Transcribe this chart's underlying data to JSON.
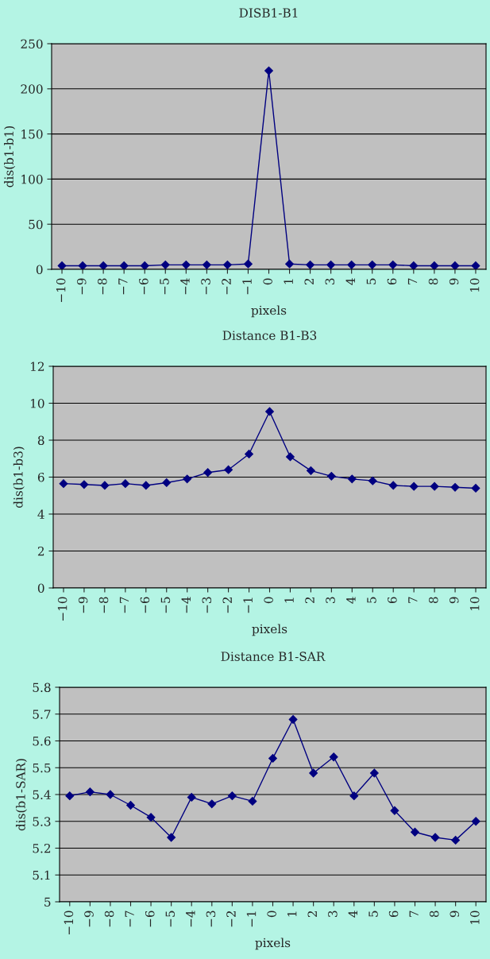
{
  "chart_data": [
    {
      "type": "line",
      "title": "DISB1-B1",
      "xlabel": "pixels",
      "ylabel": "dis(b1-b1)",
      "categories": [
        "−10",
        "−9",
        "−8",
        "−7",
        "−6",
        "−5",
        "−4",
        "−3",
        "−2",
        "−1",
        "0",
        "1",
        "2",
        "3",
        "4",
        "5",
        "6",
        "7",
        "8",
        "9",
        "10"
      ],
      "series": [
        {
          "color": "#000080",
          "values": [
            4,
            4,
            4,
            4,
            4,
            5,
            5,
            5,
            5,
            6,
            220,
            6,
            5,
            5,
            5,
            5,
            5,
            4,
            4,
            4,
            4
          ]
        }
      ],
      "ylim": [
        0,
        250
      ],
      "yticks": [
        0,
        50,
        100,
        150,
        200,
        250
      ],
      "grid": "y",
      "marker": "diamond",
      "line_style": "solid"
    },
    {
      "type": "line",
      "title": "Distance B1-B3",
      "xlabel": "pixels",
      "ylabel": "dis(b1-b3)",
      "categories": [
        "−10",
        "−9",
        "−8",
        "−7",
        "−6",
        "−5",
        "−4",
        "−3",
        "−2",
        "−1",
        "0",
        "1",
        "2",
        "3",
        "4",
        "5",
        "6",
        "7",
        "8",
        "9",
        "10"
      ],
      "series": [
        {
          "color": "#000080",
          "values": [
            5.65,
            5.6,
            5.55,
            5.65,
            5.55,
            5.7,
            5.9,
            6.25,
            6.4,
            7.25,
            9.55,
            7.1,
            6.35,
            6.05,
            5.9,
            5.8,
            5.55,
            5.5,
            5.5,
            5.45,
            5.4
          ]
        }
      ],
      "ylim": [
        0,
        12
      ],
      "yticks": [
        0,
        2,
        4,
        6,
        8,
        10,
        12
      ],
      "grid": "y",
      "marker": "diamond",
      "line_style": "solid"
    },
    {
      "type": "line",
      "title": "Distance B1-SAR",
      "xlabel": "pixels",
      "ylabel": "dis(b1-SAR)",
      "categories": [
        "−10",
        "−9",
        "−8",
        "−7",
        "−6",
        "−5",
        "−4",
        "−3",
        "−2",
        "−1",
        "0",
        "1",
        "2",
        "3",
        "4",
        "5",
        "6",
        "7",
        "8",
        "9",
        "10"
      ],
      "series": [
        {
          "color": "#000080",
          "values": [
            5.395,
            5.41,
            5.4,
            5.36,
            5.315,
            5.24,
            5.39,
            5.365,
            5.395,
            5.375,
            5.535,
            5.68,
            5.48,
            5.54,
            5.395,
            5.48,
            5.34,
            5.26,
            5.24,
            5.23,
            5.3
          ]
        }
      ],
      "ylim": [
        5,
        5.8
      ],
      "yticks": [
        {
          "value": 5,
          "label": "5"
        },
        5.1,
        5.2,
        5.3,
        5.4,
        5.5,
        5.6,
        5.7,
        5.8
      ],
      "grid": "y",
      "marker": "diamond",
      "line_style": "solid"
    }
  ]
}
